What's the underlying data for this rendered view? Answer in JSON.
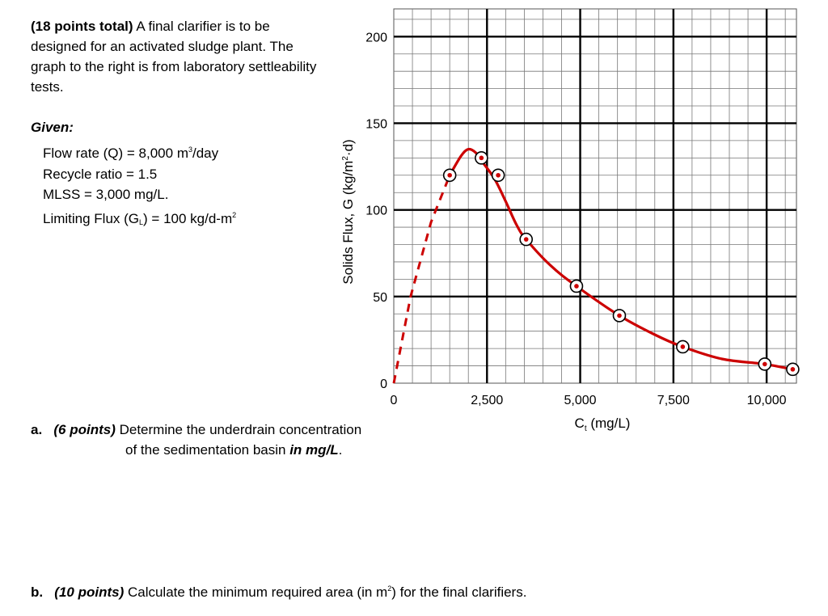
{
  "problem": {
    "points": "(18 points total)",
    "statement": " A final clarifier is to be designed for an activated sludge plant. The graph to the right is from laboratory settleability tests."
  },
  "given": {
    "title": "Given:",
    "flow_label": "Flow rate (Q) =  8,000 m",
    "flow_exp": "3",
    "flow_unit": "/day",
    "recycle": "Recycle ratio = 1.5",
    "mlss": "MLSS = 3,000 mg/L.",
    "flux_label": "Limiting Flux (G",
    "flux_sub": "L",
    "flux_rest": ") = 100 kg/d-m",
    "flux_exp": "2"
  },
  "question_a": {
    "letter": "a.",
    "points": "(6 points)",
    "text1": " Determine the underdrain concentration",
    "text2": "of the sedimentation basin ",
    "emph": "in mg/L",
    "end": "."
  },
  "question_b": {
    "letter": "b.",
    "points": "(10 points)",
    "text1": " Calculate the minimum required area (in m",
    "exp": "2",
    "text2": ") for the final clarifiers."
  },
  "chart_data": {
    "type": "line",
    "xlabel": "C",
    "xlabel_sub": "t",
    "xlabel_rest": " (mg/L)",
    "ylabel": "Solids Flux, G (kg/m",
    "ylabel_exp": "2",
    "ylabel_rest": "·d)",
    "xlim": [
      0,
      10800
    ],
    "ylim": [
      0,
      216
    ],
    "x_ticks": [
      0,
      2500,
      5000,
      7500,
      10000
    ],
    "x_tick_labels": [
      "0",
      "2,500",
      "5,000",
      "7,500",
      "10,000"
    ],
    "y_ticks": [
      0,
      50,
      100,
      150,
      200
    ],
    "y_tick_labels": [
      "0",
      "50",
      "100",
      "150",
      "200"
    ],
    "grid": true,
    "line_color": "#cc0000",
    "points": [
      {
        "x": 1500,
        "y": 120
      },
      {
        "x": 2350,
        "y": 130
      },
      {
        "x": 2800,
        "y": 120
      },
      {
        "x": 3550,
        "y": 83
      },
      {
        "x": 4900,
        "y": 56
      },
      {
        "x": 6050,
        "y": 39
      },
      {
        "x": 7750,
        "y": 21
      },
      {
        "x": 9950,
        "y": 11
      },
      {
        "x": 10700,
        "y": 8
      }
    ],
    "dashed_segment": [
      {
        "x": 0,
        "y": 0
      },
      {
        "x": 450,
        "y": 50
      },
      {
        "x": 1000,
        "y": 93
      },
      {
        "x": 1500,
        "y": 120
      }
    ],
    "solid_curve": [
      {
        "x": 1500,
        "y": 120
      },
      {
        "x": 1800,
        "y": 131
      },
      {
        "x": 2000,
        "y": 135
      },
      {
        "x": 2200,
        "y": 133
      },
      {
        "x": 2400,
        "y": 127
      },
      {
        "x": 2700,
        "y": 118
      },
      {
        "x": 3000,
        "y": 105
      },
      {
        "x": 3300,
        "y": 91
      },
      {
        "x": 3550,
        "y": 83
      },
      {
        "x": 4200,
        "y": 68
      },
      {
        "x": 4900,
        "y": 56
      },
      {
        "x": 6050,
        "y": 39
      },
      {
        "x": 7000,
        "y": 28
      },
      {
        "x": 7750,
        "y": 21
      },
      {
        "x": 8800,
        "y": 14
      },
      {
        "x": 9950,
        "y": 11
      },
      {
        "x": 10700,
        "y": 8
      }
    ]
  }
}
